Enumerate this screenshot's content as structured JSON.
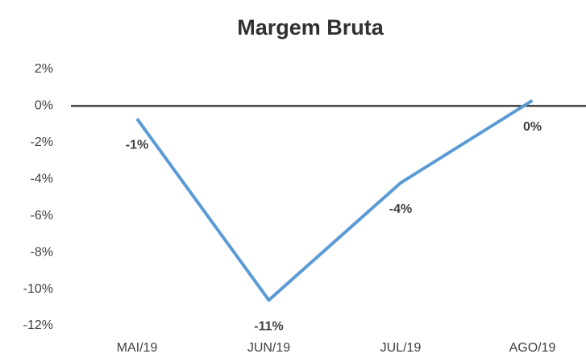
{
  "chart_data": {
    "type": "line",
    "title": "Margem Bruta",
    "categories": [
      "MAI/19",
      "JUN/19",
      "JUL/19",
      "AGO/19"
    ],
    "series": [
      {
        "name": "Margem Bruta",
        "color": "#5b9bd5",
        "values": [
          -0.7,
          -10.6,
          -4.2,
          0.3
        ],
        "value_labels": [
          "-1%",
          "-11%",
          "-4%",
          "0%"
        ]
      }
    ],
    "ylim": [
      -12,
      2
    ],
    "yticks": [
      {
        "value": 2,
        "label": "2%"
      },
      {
        "value": 0,
        "label": "0%"
      },
      {
        "value": -2,
        "label": "-2%"
      },
      {
        "value": -4,
        "label": "-4%"
      },
      {
        "value": -6,
        "label": "-6%"
      },
      {
        "value": -8,
        "label": "-8%"
      },
      {
        "value": -10,
        "label": "-10%"
      },
      {
        "value": -12,
        "label": "-12%"
      }
    ],
    "grid": false
  }
}
